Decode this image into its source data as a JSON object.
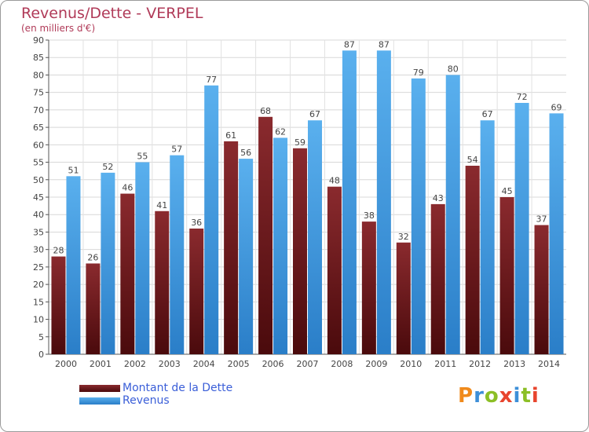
{
  "title": "Revenus/Dette - VERPEL",
  "subtitle": "(en milliers d'€)",
  "logo": {
    "text": "Proxiti",
    "colors": [
      "#f08a1c",
      "#3d8fd8",
      "#8cbf26",
      "#e8452e",
      "#3d8fd8",
      "#8cbf26",
      "#e8452e"
    ]
  },
  "chart_data": {
    "type": "bar",
    "categories": [
      "2000",
      "2001",
      "2002",
      "2003",
      "2004",
      "2005",
      "2006",
      "2007",
      "2008",
      "2009",
      "2010",
      "2011",
      "2012",
      "2013",
      "2014"
    ],
    "series": [
      {
        "name": "Montant de la Dette",
        "color": "#7a1e22",
        "values": [
          28,
          26,
          46,
          41,
          36,
          61,
          68,
          59,
          48,
          38,
          32,
          43,
          54,
          45,
          37
        ]
      },
      {
        "name": "Revenus",
        "color": "#4aa3e6",
        "values": [
          51,
          52,
          55,
          57,
          77,
          56,
          62,
          67,
          87,
          87,
          79,
          80,
          67,
          72,
          69
        ]
      }
    ],
    "ylim": [
      0,
      90
    ],
    "yticks": [
      0,
      5,
      10,
      15,
      20,
      25,
      30,
      35,
      40,
      45,
      50,
      55,
      60,
      65,
      70,
      75,
      80,
      85,
      90
    ],
    "grid": true,
    "legend": "bottom-left"
  }
}
